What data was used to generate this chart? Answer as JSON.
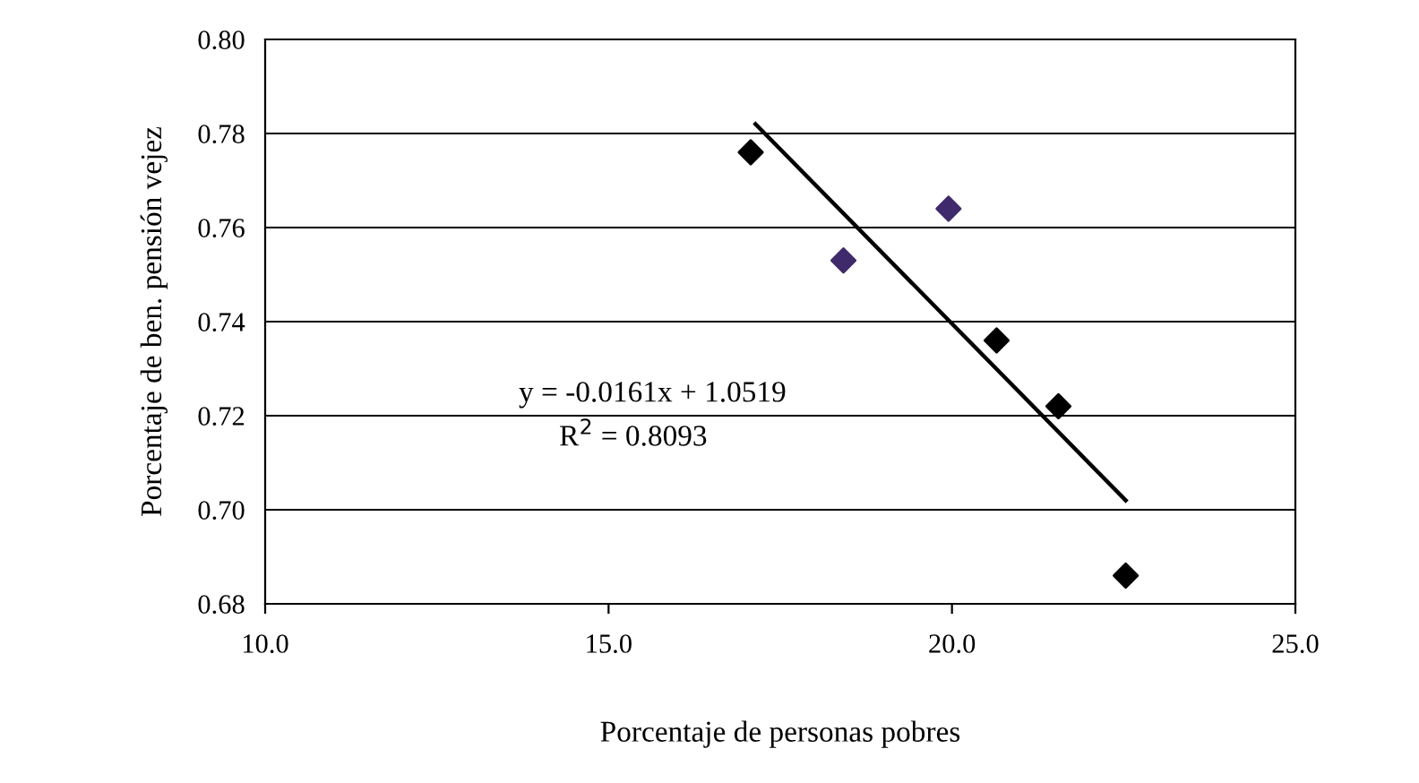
{
  "chart_data": {
    "type": "scatter",
    "xlabel": "Porcentaje de personas pobres",
    "ylabel": "Porcentaje de ben. pensión vejez",
    "xlim": [
      10,
      25
    ],
    "xticks": [
      {
        "value": 10,
        "label": "10.0"
      },
      {
        "value": 15,
        "label": "15.0"
      },
      {
        "value": 20,
        "label": "20.0"
      },
      {
        "value": 25,
        "label": "25.0"
      }
    ],
    "ylim": [
      0.68,
      0.8
    ],
    "yticks": [
      {
        "value": 0.68,
        "label": "0.68"
      },
      {
        "value": 0.7,
        "label": "0.70"
      },
      {
        "value": 0.72,
        "label": "0.72"
      },
      {
        "value": 0.74,
        "label": "0.74"
      },
      {
        "value": 0.76,
        "label": "0.76"
      },
      {
        "value": 0.78,
        "label": "0.78"
      },
      {
        "value": 0.8,
        "label": "0.80"
      }
    ],
    "grid": "y",
    "series": [
      {
        "marker": "diamond",
        "x": [
          17.07,
          18.42,
          19.95,
          20.65,
          21.55,
          22.53
        ],
        "values": [
          0.776,
          0.753,
          0.764,
          0.736,
          0.722,
          0.686
        ],
        "colors": [
          "#000000",
          "#3f2a6b",
          "#3f2a6b",
          "#000000",
          "#000000",
          "#000000"
        ],
        "color": "#000000"
      },
      {
        "type": "line",
        "marker": "none",
        "x": [
          17.14,
          22.53
        ],
        "values": [
          0.782,
          0.702
        ],
        "color": "#000000"
      }
    ],
    "annotations": [
      "y = -0.0161x + 1.0519",
      "R$^{2}$ = 0.8093"
    ]
  }
}
